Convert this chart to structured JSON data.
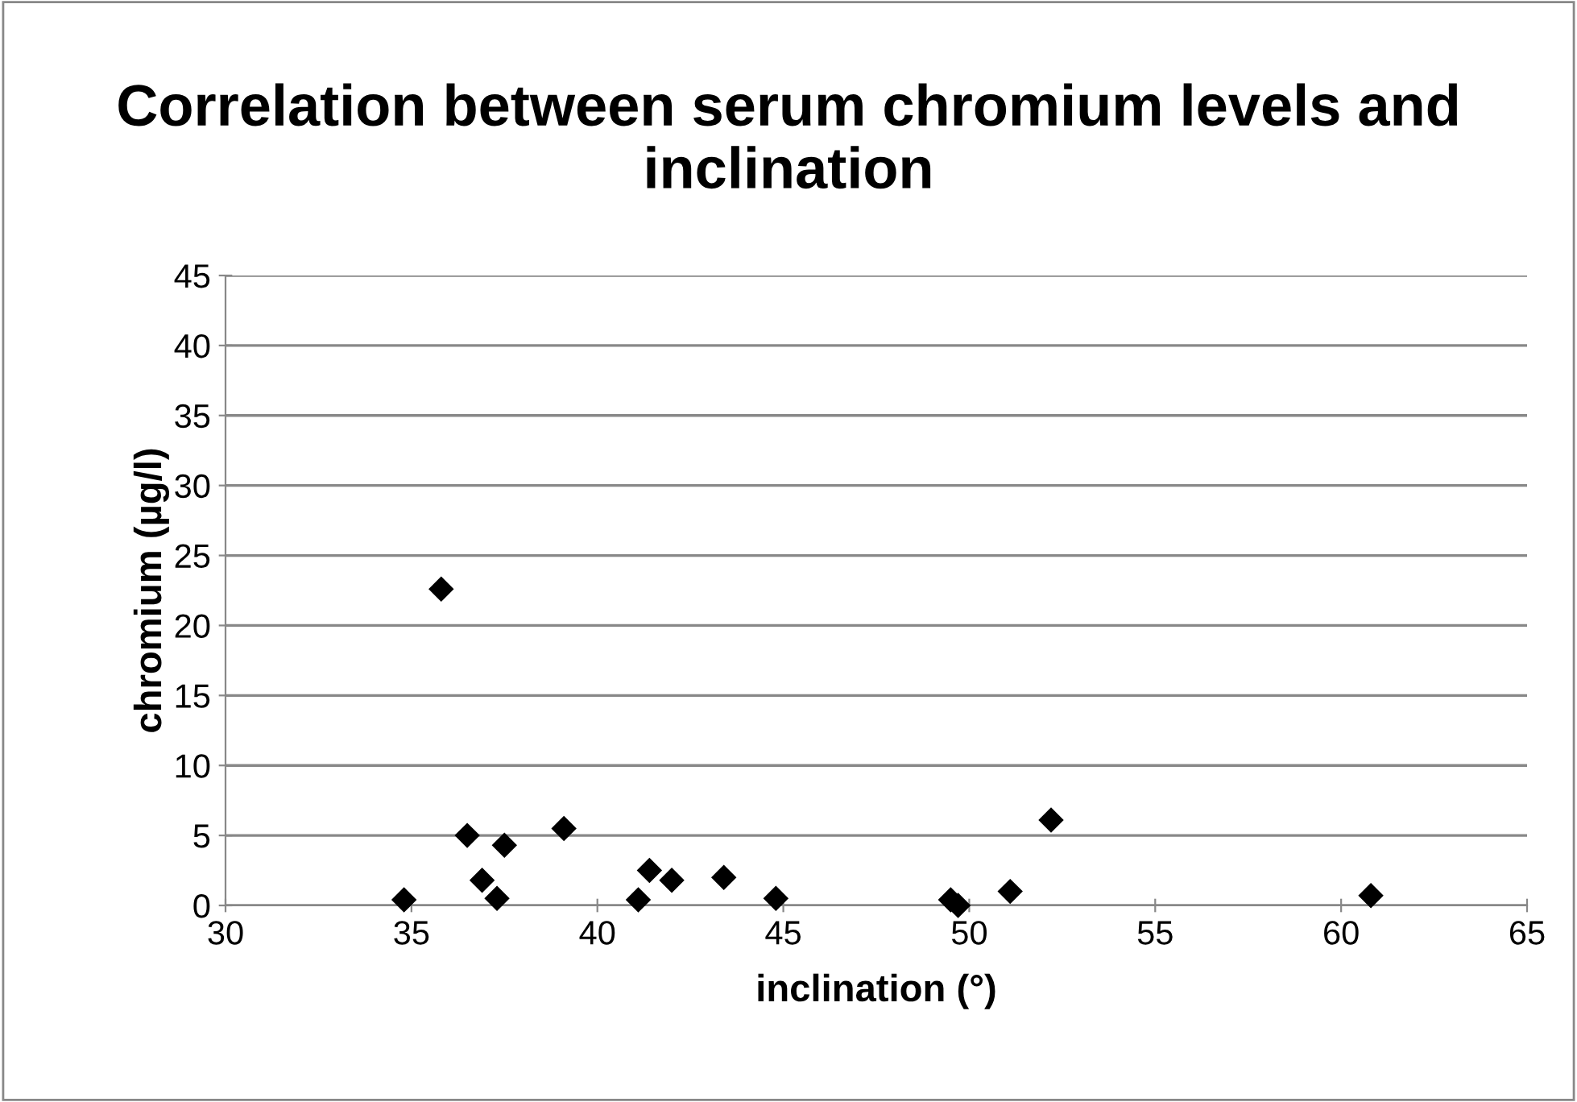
{
  "chart_data": {
    "type": "scatter",
    "title": "Correlation between serum chromium levels and inclination",
    "xlabel": "inclination (°)",
    "ylabel": "chromium (µg/l)",
    "x": [
      34.8,
      35.8,
      36.5,
      36.9,
      37.3,
      37.5,
      39.1,
      41.1,
      41.4,
      42.0,
      43.4,
      44.8,
      49.5,
      49.7,
      51.1,
      52.2,
      60.8
    ],
    "values": [
      0.4,
      22.6,
      5.0,
      1.8,
      0.5,
      4.3,
      5.5,
      0.4,
      2.5,
      1.8,
      2.0,
      0.5,
      0.4,
      0.0,
      1.0,
      6.1,
      0.7
    ],
    "color": "#000000",
    "marker": "diamond",
    "grid": "y",
    "xlim": [
      30,
      65
    ],
    "xticks": [
      30,
      35,
      40,
      45,
      50,
      55,
      60,
      65
    ],
    "ylim": [
      0,
      45
    ],
    "yticks": [
      0,
      5,
      10,
      15,
      20,
      25,
      30,
      35,
      40,
      45
    ]
  }
}
